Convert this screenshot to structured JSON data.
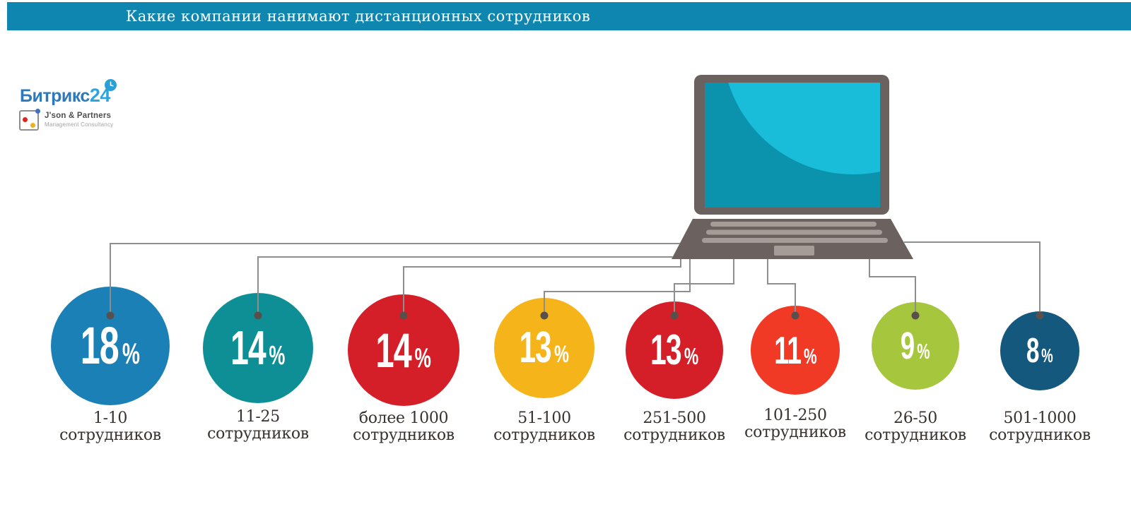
{
  "header": {
    "title": "Какие компании нанимают дистанционных сотрудников",
    "bar_color": "#0f86b0"
  },
  "logos": {
    "bitrix24": {
      "text_primary": "Битрикс",
      "text_accent": "24",
      "primary_color": "#2e79bb",
      "accent_color": "#2ba5de",
      "clock_icon_color": "#2ba0d6"
    },
    "json_partners": {
      "name": "J'son & Partners",
      "subtitle": "Management Consultancy",
      "icon_dot_colors": [
        "#d6281e",
        "#f2b01e",
        "#3f72b8"
      ]
    }
  },
  "illustration": {
    "laptop_body_color": "#6b615f",
    "screen_color": "#0b93ae",
    "screen_highlight_color": "#19bdd9",
    "key_color": "#a59c98",
    "connector_line_color": "#8e8e8e",
    "connector_dot_color": "#58504d"
  },
  "chart_data": {
    "type": "bubble",
    "title": "Какие компании нанимают дистанционных сотрудников",
    "unit": "%",
    "value_label_word": "сотрудников",
    "legend_position": "none",
    "layout_hint": "bubble area encodes percentage; each bubble is wired to a laptop illustration",
    "items": [
      {
        "category": "1-10 сотрудников",
        "range": "1-10",
        "value": 18,
        "color": "#1a80b6"
      },
      {
        "category": "11-25 сотрудников",
        "range": "11-25",
        "value": 14,
        "color": "#0e8f96"
      },
      {
        "category": "более 1000 сотрудников",
        "range": "более 1000",
        "value": 14,
        "color": "#d51f28"
      },
      {
        "category": "51-100 сотрудников",
        "range": "51-100",
        "value": 13,
        "color": "#f5b41a"
      },
      {
        "category": "251-500 сотрудников",
        "range": "251-500",
        "value": 13,
        "color": "#d51f28"
      },
      {
        "category": "101-250 сотрудников",
        "range": "101-250",
        "value": 11,
        "color": "#f03a25"
      },
      {
        "category": "26-50 сотрудников",
        "range": "26-50",
        "value": 9,
        "color": "#a6c63d"
      },
      {
        "category": "501-1000 сотрудников",
        "range": "501-1000",
        "value": 8,
        "color": "#14587e"
      }
    ]
  }
}
